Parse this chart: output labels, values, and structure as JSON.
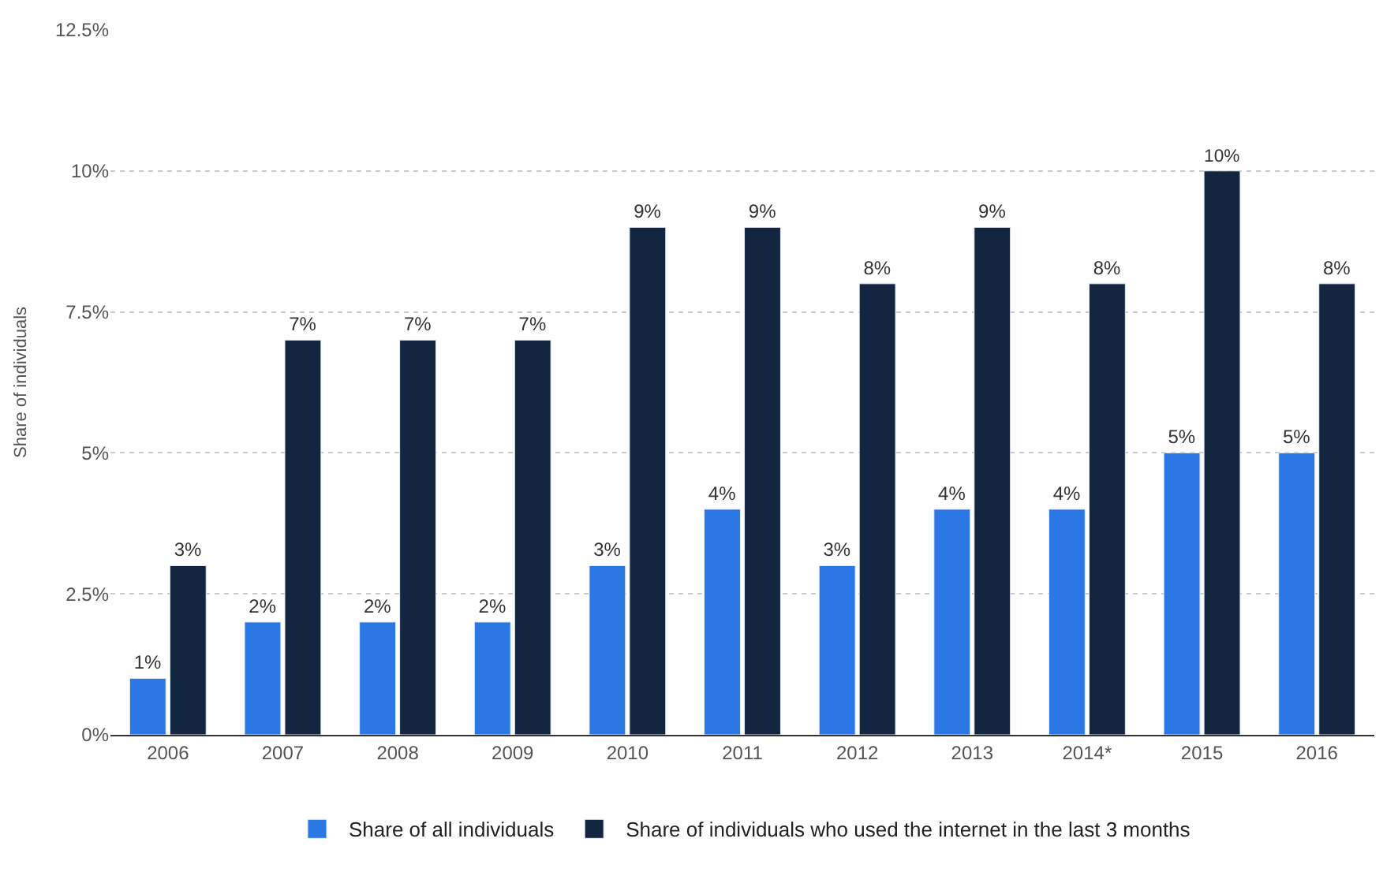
{
  "chart_data": {
    "type": "bar",
    "ylabel": "Share of individuals",
    "categories": [
      "2006",
      "2007",
      "2008",
      "2009",
      "2010",
      "2011",
      "2012",
      "2013",
      "2014*",
      "2015",
      "2016"
    ],
    "series": [
      {
        "name": "Share of all individuals",
        "color": "#2b78e4",
        "values": [
          1,
          2,
          2,
          2,
          3,
          4,
          3,
          4,
          4,
          5,
          5
        ],
        "value_labels": [
          "1%",
          "2%",
          "2%",
          "2%",
          "3%",
          "4%",
          "3%",
          "4%",
          "4%",
          "5%",
          "5%"
        ]
      },
      {
        "name": "Share of individuals who used the internet in the last 3 months",
        "color": "#12263f",
        "values": [
          3,
          7,
          7,
          7,
          9,
          9,
          8,
          9,
          8,
          10,
          8
        ],
        "value_labels": [
          "3%",
          "7%",
          "7%",
          "7%",
          "9%",
          "9%",
          "8%",
          "9%",
          "8%",
          "10%",
          "8%"
        ]
      }
    ],
    "ylim": [
      0,
      12.5
    ],
    "yticks": [
      {
        "value": 0,
        "label": "0%"
      },
      {
        "value": 2.5,
        "label": "2.5%"
      },
      {
        "value": 5,
        "label": "5%"
      },
      {
        "value": 7.5,
        "label": "7.5%"
      },
      {
        "value": 10,
        "label": "10%"
      },
      {
        "value": 12.5,
        "label": "12.5%"
      }
    ],
    "grid": "y",
    "legend": "bottom"
  }
}
